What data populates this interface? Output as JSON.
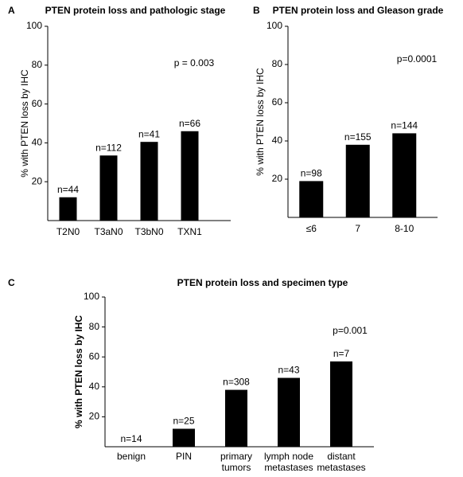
{
  "chart_data": [
    {
      "type": "bar",
      "panel_label": "A",
      "title": "PTEN protein loss and pathologic stage",
      "ylabel": "% with PTEN loss by IHC",
      "annotation": "p = 0.003",
      "categories": [
        "T2N0",
        "T3aN0",
        "T3bN0",
        "TXN1"
      ],
      "values": [
        12,
        33.5,
        40.5,
        46
      ],
      "sample_sizes": [
        "n=44",
        "n=112",
        "n=41",
        "n=66"
      ],
      "color": "#000000",
      "ylim": [
        0,
        100
      ],
      "yticks": [
        20,
        40,
        60,
        80,
        100
      ],
      "grid": false
    },
    {
      "type": "bar",
      "panel_label": "B",
      "title": "PTEN protein loss and Gleason grade",
      "ylabel": "% with PTEN loss by IHC",
      "annotation": "p=0.0001",
      "categories": [
        "≤6",
        "7",
        "8-10"
      ],
      "values": [
        19,
        38,
        44
      ],
      "sample_sizes": [
        "n=98",
        "n=155",
        "n=144"
      ],
      "color": "#000000",
      "ylim": [
        0,
        100
      ],
      "yticks": [
        20,
        40,
        60,
        80,
        100
      ],
      "grid": false
    },
    {
      "type": "bar",
      "panel_label": "C",
      "title": "PTEN protein loss and specimen type",
      "ylabel": "% with PTEN loss by IHC",
      "annotation": "p=0.001",
      "categories": [
        "benign",
        "PIN",
        [
          "primary",
          "tumors"
        ],
        [
          "lymph node",
          "metastases"
        ],
        [
          "distant",
          "metastases"
        ]
      ],
      "values": [
        0,
        12,
        38,
        46,
        57
      ],
      "sample_sizes": [
        "n=14",
        "n=25",
        "n=308",
        "n=43",
        "n=7"
      ],
      "color": "#000000",
      "ylim": [
        0,
        100
      ],
      "yticks": [
        20,
        40,
        60,
        80,
        100
      ],
      "grid": false
    }
  ]
}
